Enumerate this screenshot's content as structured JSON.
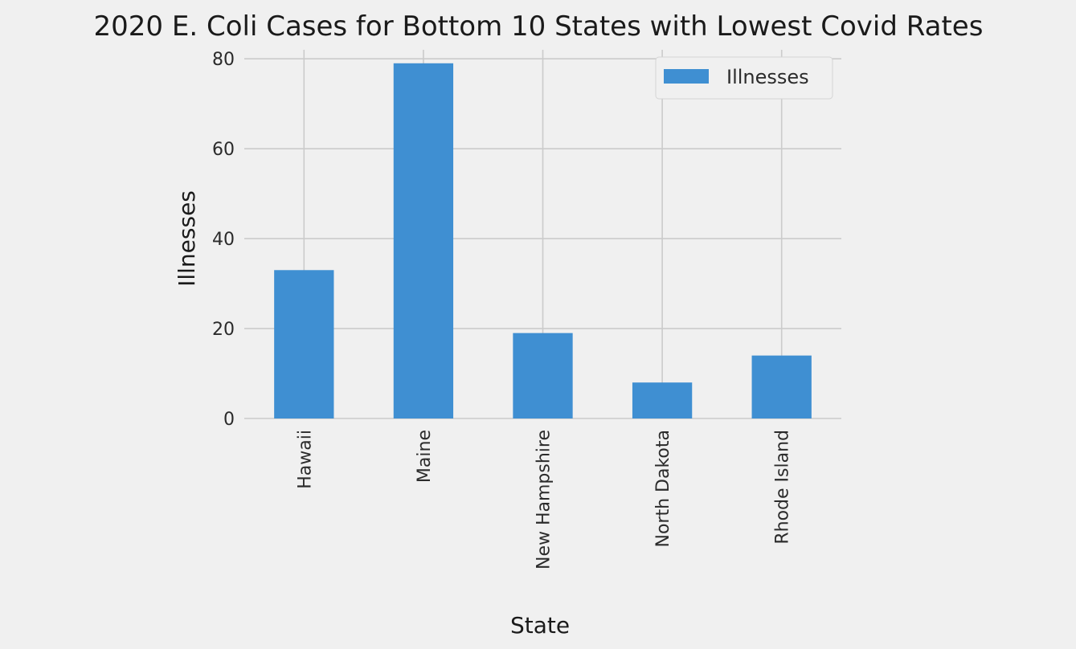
{
  "chart_data": {
    "type": "bar",
    "title": "2020 E. Coli Cases for Bottom 10 States with Lowest Covid Rates",
    "xlabel": "State",
    "ylabel": "Illnesses",
    "categories": [
      "Hawaii",
      "Maine",
      "New Hampshire",
      "North Dakota",
      "Rhode Island"
    ],
    "series": [
      {
        "name": "Illnesses",
        "values": [
          33,
          79,
          19,
          8,
          14
        ]
      }
    ],
    "ylim": [
      0,
      82
    ],
    "yticks": [
      0,
      20,
      40,
      60,
      80
    ],
    "grid": true,
    "legend": "top-right",
    "colors": {
      "bar": "#3f8fd2",
      "background": "#f0f0f0",
      "grid": "#cbcbcb"
    }
  }
}
